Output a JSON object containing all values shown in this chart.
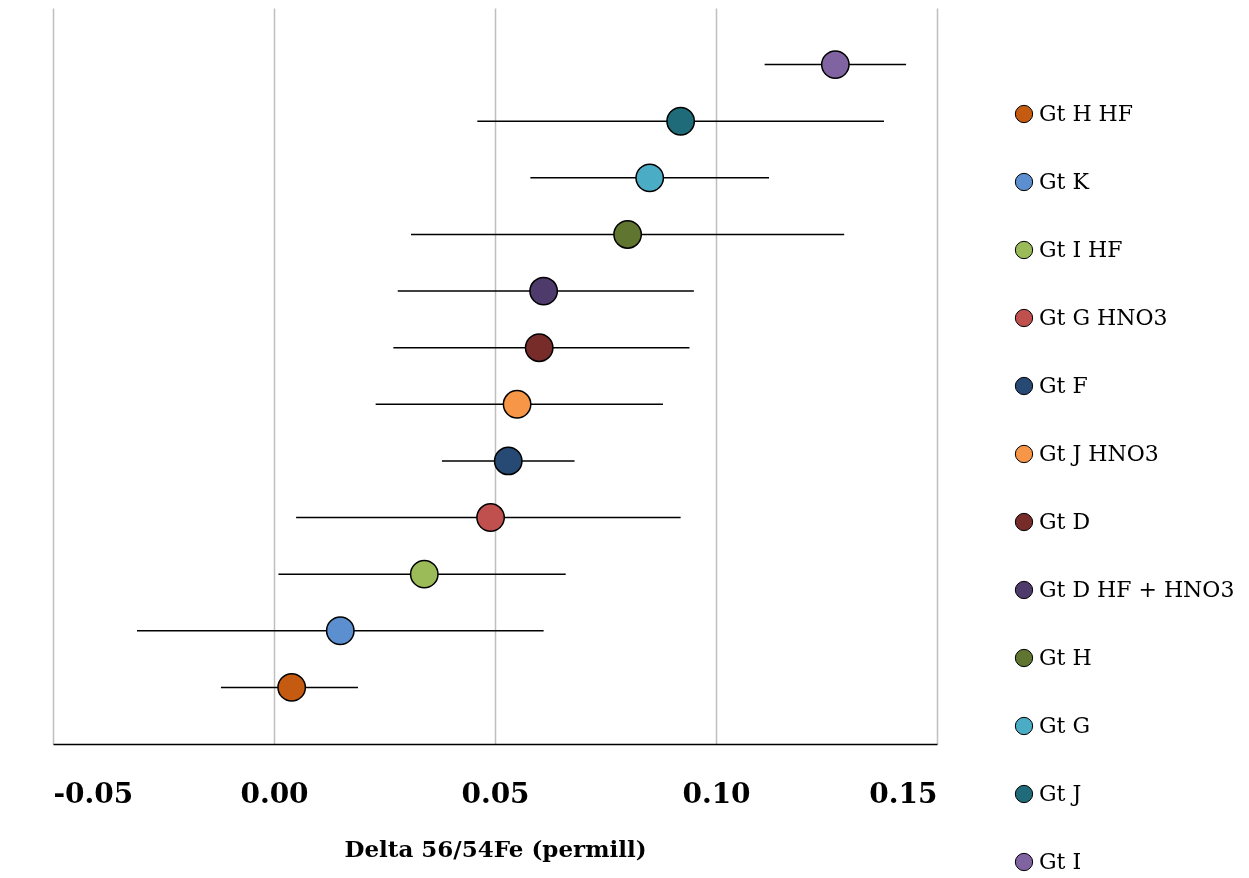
{
  "chart_data": {
    "type": "scatter",
    "orientation": "horizontal",
    "xlabel": "Delta 56/54Fe (permill)",
    "categories": [
      null,
      null,
      null,
      null,
      null,
      null,
      null,
      null,
      null,
      null,
      null,
      null
    ],
    "xlim": [
      -0.05,
      0.15
    ],
    "xticks": [
      {
        "value": -0.05,
        "label": "-0.05"
      },
      {
        "value": 0,
        "label": "0.00"
      },
      {
        "value": 0.05,
        "label": "0.05"
      },
      {
        "value": 0.1,
        "label": "0.10"
      },
      {
        "value": 0.15,
        "label": "0.15"
      }
    ],
    "grid": "x",
    "legend": "right",
    "marker": "circle",
    "series": [
      {
        "name": "Gt H HF",
        "color": "#c55a11",
        "values": [
          null,
          null,
          null,
          null,
          null,
          null,
          null,
          null,
          null,
          null,
          null,
          0.004
        ],
        "errors": [
          null,
          null,
          null,
          null,
          null,
          null,
          null,
          null,
          null,
          null,
          null,
          [
            -0.012,
            0.019
          ]
        ]
      },
      {
        "name": "Gt K",
        "color": "#5b8fd0",
        "values": [
          null,
          null,
          null,
          null,
          null,
          null,
          null,
          null,
          null,
          null,
          0.015,
          null
        ],
        "errors": [
          null,
          null,
          null,
          null,
          null,
          null,
          null,
          null,
          null,
          null,
          [
            -0.031,
            0.061
          ],
          null
        ]
      },
      {
        "name": "Gt I HF",
        "color": "#9bbb59",
        "values": [
          null,
          null,
          null,
          null,
          null,
          null,
          null,
          null,
          null,
          0.034,
          null,
          null
        ],
        "errors": [
          null,
          null,
          null,
          null,
          null,
          null,
          null,
          null,
          null,
          [
            0.001,
            0.066
          ],
          null,
          null
        ]
      },
      {
        "name": "Gt G HNO3",
        "color": "#c0504d",
        "values": [
          null,
          null,
          null,
          null,
          null,
          null,
          null,
          null,
          0.049,
          null,
          null,
          null
        ],
        "errors": [
          null,
          null,
          null,
          null,
          null,
          null,
          null,
          null,
          [
            0.005,
            0.092
          ],
          null,
          null,
          null
        ]
      },
      {
        "name": "Gt F",
        "color": "#264a73",
        "values": [
          null,
          null,
          null,
          null,
          null,
          null,
          null,
          0.053,
          null,
          null,
          null,
          null
        ],
        "errors": [
          null,
          null,
          null,
          null,
          null,
          null,
          null,
          [
            0.038,
            0.068
          ],
          null,
          null,
          null,
          null
        ]
      },
      {
        "name": "Gt J HNO3",
        "color": "#f79646",
        "values": [
          null,
          null,
          null,
          null,
          null,
          null,
          0.055,
          null,
          null,
          null,
          null,
          null
        ],
        "errors": [
          null,
          null,
          null,
          null,
          null,
          null,
          [
            0.023,
            0.088
          ],
          null,
          null,
          null,
          null,
          null
        ]
      },
      {
        "name": "Gt D",
        "color": "#772c2a",
        "values": [
          null,
          null,
          null,
          null,
          null,
          0.06,
          null,
          null,
          null,
          null,
          null,
          null
        ],
        "errors": [
          null,
          null,
          null,
          null,
          null,
          [
            0.027,
            0.094
          ],
          null,
          null,
          null,
          null,
          null,
          null
        ]
      },
      {
        "name": "Gt D HF + HNO3",
        "color": "#4f3b6b",
        "values": [
          null,
          null,
          null,
          null,
          0.061,
          null,
          null,
          null,
          null,
          null,
          null,
          null
        ],
        "errors": [
          null,
          null,
          null,
          null,
          [
            0.028,
            0.095
          ],
          null,
          null,
          null,
          null,
          null,
          null,
          null
        ]
      },
      {
        "name": "Gt H",
        "color": "#5f7530",
        "values": [
          null,
          null,
          null,
          0.08,
          null,
          null,
          null,
          null,
          null,
          null,
          null,
          null
        ],
        "errors": [
          null,
          null,
          null,
          [
            0.031,
            0.129
          ],
          null,
          null,
          null,
          null,
          null,
          null,
          null,
          null
        ]
      },
      {
        "name": "Gt G",
        "color": "#4bacc6",
        "values": [
          null,
          null,
          0.085,
          null,
          null,
          null,
          null,
          null,
          null,
          null,
          null,
          null
        ],
        "errors": [
          null,
          null,
          [
            0.058,
            0.112
          ],
          null,
          null,
          null,
          null,
          null,
          null,
          null,
          null,
          null
        ]
      },
      {
        "name": "Gt J",
        "color": "#1f6b7a",
        "values": [
          null,
          0.092,
          null,
          null,
          null,
          null,
          null,
          null,
          null,
          null,
          null,
          null
        ],
        "errors": [
          null,
          [
            0.046,
            0.138
          ],
          null,
          null,
          null,
          null,
          null,
          null,
          null,
          null,
          null,
          null
        ]
      },
      {
        "name": "Gt I",
        "color": "#8064a2",
        "values": [
          0.127,
          null,
          null,
          null,
          null,
          null,
          null,
          null,
          null,
          null,
          null,
          null
        ],
        "errors": [
          [
            0.111,
            0.143
          ],
          null,
          null,
          null,
          null,
          null,
          null,
          null,
          null,
          null,
          null,
          null
        ]
      }
    ]
  }
}
